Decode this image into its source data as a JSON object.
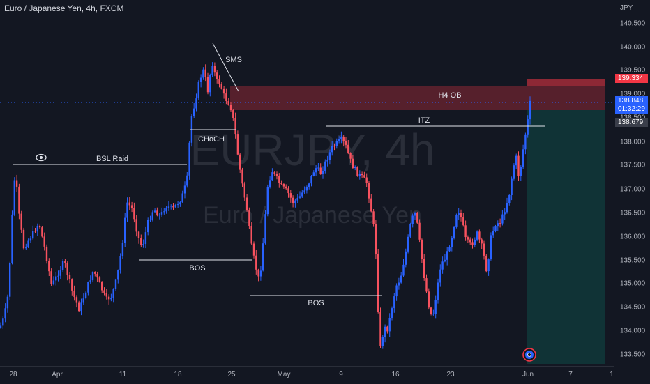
{
  "symbol": {
    "title": "Euro / Japanese Yen, 4h, FXCM",
    "watermark_ticker": "EURJPY, 4h",
    "watermark_name": "Euro / Japanese Yen"
  },
  "price_axis": {
    "currency": "JPY",
    "labels": [
      "140.500",
      "140.000",
      "139.500",
      "139.000",
      "138.500",
      "138.000",
      "137.500",
      "137.000",
      "136.500",
      "136.000",
      "135.500",
      "135.000",
      "134.500",
      "134.000",
      "133.500"
    ]
  },
  "price_tags": {
    "upper": {
      "value": "139.334",
      "color": "#f23645"
    },
    "current": {
      "value": "138.848",
      "countdown": "01:32:29",
      "color": "#2962ff"
    },
    "lower": {
      "value": "138.679",
      "color": "#3a3e4a"
    }
  },
  "time_axis": {
    "labels": [
      "28",
      "Apr",
      "11",
      "18",
      "25",
      "May",
      "9",
      "16",
      "23",
      "Jun",
      "7",
      "1"
    ]
  },
  "annotations": {
    "bsl_raid": "BSL Raid",
    "sms": "SMS",
    "choch": "CHoCH",
    "bos_1": "BOS",
    "bos_2": "BOS",
    "h4_ob": "H4 OB",
    "itz": "ITZ"
  },
  "colors": {
    "bull": "#2962ff",
    "bear": "#f7525f",
    "ob_zone": "#f23645",
    "position_zone": "#089981",
    "background": "#131722"
  },
  "icons": {
    "eye": "eye-icon",
    "alert": "alert-target-icon"
  }
}
